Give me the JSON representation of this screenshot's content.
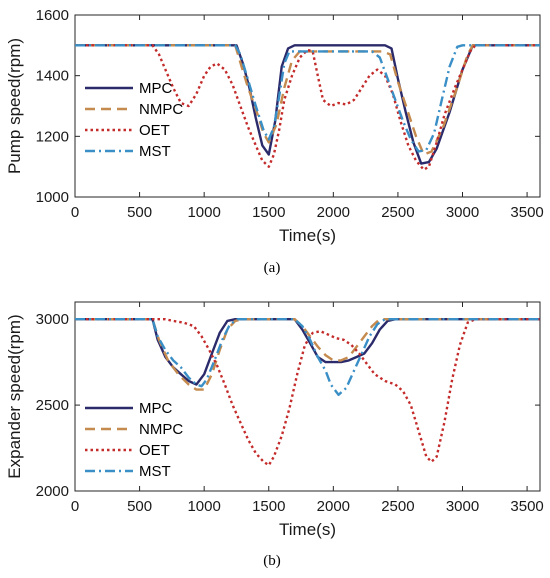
{
  "chart_data": [
    {
      "type": "line",
      "panel_label": "(a)",
      "xlabel": "Time(s)",
      "ylabel": "Pump speed(rpm)",
      "xlim": [
        0,
        3600
      ],
      "ylim": [
        1000,
        1600
      ],
      "xticks": [
        0,
        500,
        1000,
        1500,
        2000,
        2500,
        3000,
        3500
      ],
      "yticks": [
        1000,
        1200,
        1400,
        1600
      ],
      "grid": false,
      "legend_position": "left",
      "series": [
        {
          "name": "MPC",
          "color": "#2b2a6b",
          "dash": "solid",
          "points": [
            [
              0,
              1500
            ],
            [
              1250,
              1500
            ],
            [
              1300,
              1440
            ],
            [
              1350,
              1360
            ],
            [
              1400,
              1260
            ],
            [
              1450,
              1170
            ],
            [
              1500,
              1140
            ],
            [
              1550,
              1250
            ],
            [
              1600,
              1430
            ],
            [
              1650,
              1490
            ],
            [
              1700,
              1500
            ],
            [
              2400,
              1500
            ],
            [
              2450,
              1490
            ],
            [
              2500,
              1390
            ],
            [
              2560,
              1280
            ],
            [
              2620,
              1180
            ],
            [
              2680,
              1110
            ],
            [
              2740,
              1115
            ],
            [
              2800,
              1160
            ],
            [
              2900,
              1280
            ],
            [
              3000,
              1420
            ],
            [
              3080,
              1500
            ],
            [
              3600,
              1500
            ]
          ]
        },
        {
          "name": "NMPC",
          "color": "#c48a4e",
          "dash": "10,6",
          "points": [
            [
              0,
              1500
            ],
            [
              1240,
              1500
            ],
            [
              1290,
              1430
            ],
            [
              1340,
              1360
            ],
            [
              1400,
              1290
            ],
            [
              1460,
              1210
            ],
            [
              1500,
              1180
            ],
            [
              1560,
              1240
            ],
            [
              1620,
              1360
            ],
            [
              1680,
              1450
            ],
            [
              1740,
              1480
            ],
            [
              2380,
              1480
            ],
            [
              2440,
              1470
            ],
            [
              2500,
              1380
            ],
            [
              2570,
              1290
            ],
            [
              2640,
              1200
            ],
            [
              2700,
              1140
            ],
            [
              2760,
              1150
            ],
            [
              2850,
              1230
            ],
            [
              2950,
              1350
            ],
            [
              3040,
              1470
            ],
            [
              3080,
              1500
            ],
            [
              3600,
              1500
            ]
          ]
        },
        {
          "name": "OET",
          "color": "#c42b2b",
          "dash": "2.5,3",
          "points": [
            [
              0,
              1500
            ],
            [
              600,
              1500
            ],
            [
              650,
              1470
            ],
            [
              700,
              1420
            ],
            [
              760,
              1360
            ],
            [
              820,
              1310
            ],
            [
              880,
              1300
            ],
            [
              940,
              1340
            ],
            [
              1000,
              1400
            ],
            [
              1050,
              1430
            ],
            [
              1100,
              1440
            ],
            [
              1160,
              1420
            ],
            [
              1220,
              1370
            ],
            [
              1280,
              1300
            ],
            [
              1340,
              1230
            ],
            [
              1400,
              1170
            ],
            [
              1450,
              1120
            ],
            [
              1500,
              1100
            ],
            [
              1540,
              1140
            ],
            [
              1580,
              1220
            ],
            [
              1620,
              1320
            ],
            [
              1680,
              1400
            ],
            [
              1740,
              1460
            ],
            [
              1800,
              1485
            ],
            [
              1840,
              1480
            ],
            [
              1880,
              1400
            ],
            [
              1920,
              1320
            ],
            [
              1980,
              1300
            ],
            [
              2040,
              1310
            ],
            [
              2100,
              1305
            ],
            [
              2160,
              1320
            ],
            [
              2220,
              1360
            ],
            [
              2280,
              1400
            ],
            [
              2340,
              1420
            ],
            [
              2400,
              1400
            ],
            [
              2460,
              1340
            ],
            [
              2520,
              1250
            ],
            [
              2580,
              1170
            ],
            [
              2640,
              1120
            ],
            [
              2700,
              1090
            ],
            [
              2740,
              1100
            ],
            [
              2800,
              1180
            ],
            [
              2860,
              1270
            ],
            [
              2940,
              1360
            ],
            [
              3000,
              1420
            ],
            [
              3060,
              1480
            ],
            [
              3100,
              1500
            ],
            [
              3600,
              1500
            ]
          ]
        },
        {
          "name": "MST",
          "color": "#3a8fc6",
          "dash": "10,4,2,4",
          "points": [
            [
              0,
              1500
            ],
            [
              1240,
              1500
            ],
            [
              1280,
              1470
            ],
            [
              1330,
              1400
            ],
            [
              1400,
              1300
            ],
            [
              1460,
              1220
            ],
            [
              1500,
              1190
            ],
            [
              1540,
              1230
            ],
            [
              1580,
              1330
            ],
            [
              1620,
              1440
            ],
            [
              1660,
              1480
            ],
            [
              2300,
              1480
            ],
            [
              2360,
              1460
            ],
            [
              2420,
              1390
            ],
            [
              2480,
              1320
            ],
            [
              2540,
              1250
            ],
            [
              2600,
              1190
            ],
            [
              2660,
              1150
            ],
            [
              2720,
              1155
            ],
            [
              2780,
              1210
            ],
            [
              2840,
              1320
            ],
            [
              2900,
              1430
            ],
            [
              2960,
              1495
            ],
            [
              3000,
              1500
            ],
            [
              3600,
              1500
            ]
          ]
        }
      ]
    },
    {
      "type": "line",
      "panel_label": "(b)",
      "xlabel": "Time(s)",
      "ylabel": "Expander speed(rpm)",
      "xlim": [
        0,
        3600
      ],
      "ylim": [
        2000,
        3100
      ],
      "xticks": [
        0,
        500,
        1000,
        1500,
        2000,
        2500,
        3000,
        3500
      ],
      "yticks": [
        2000,
        2500,
        3000
      ],
      "grid": false,
      "legend_position": "bottom-left",
      "series": [
        {
          "name": "MPC",
          "color": "#2b2a6b",
          "dash": "solid",
          "points": [
            [
              0,
              3000
            ],
            [
              600,
              3000
            ],
            [
              640,
              2880
            ],
            [
              700,
              2780
            ],
            [
              760,
              2720
            ],
            [
              820,
              2680
            ],
            [
              880,
              2640
            ],
            [
              940,
              2620
            ],
            [
              1000,
              2680
            ],
            [
              1060,
              2800
            ],
            [
              1120,
              2920
            ],
            [
              1180,
              2990
            ],
            [
              1240,
              3000
            ],
            [
              1700,
              3000
            ],
            [
              1760,
              2940
            ],
            [
              1820,
              2860
            ],
            [
              1880,
              2780
            ],
            [
              1940,
              2750
            ],
            [
              2000,
              2750
            ],
            [
              2060,
              2750
            ],
            [
              2120,
              2760
            ],
            [
              2180,
              2780
            ],
            [
              2240,
              2800
            ],
            [
              2300,
              2860
            ],
            [
              2360,
              2940
            ],
            [
              2420,
              2990
            ],
            [
              2480,
              3000
            ],
            [
              3600,
              3000
            ]
          ]
        },
        {
          "name": "NMPC",
          "color": "#c48a4e",
          "dash": "10,6",
          "points": [
            [
              0,
              3000
            ],
            [
              600,
              3000
            ],
            [
              650,
              2880
            ],
            [
              720,
              2760
            ],
            [
              800,
              2680
            ],
            [
              880,
              2620
            ],
            [
              940,
              2590
            ],
            [
              1000,
              2590
            ],
            [
              1060,
              2680
            ],
            [
              1120,
              2820
            ],
            [
              1180,
              2940
            ],
            [
              1240,
              2990
            ],
            [
              1300,
              3000
            ],
            [
              1700,
              3000
            ],
            [
              1760,
              2960
            ],
            [
              1820,
              2900
            ],
            [
              1880,
              2840
            ],
            [
              1940,
              2790
            ],
            [
              2000,
              2760
            ],
            [
              2060,
              2760
            ],
            [
              2120,
              2780
            ],
            [
              2180,
              2840
            ],
            [
              2240,
              2900
            ],
            [
              2300,
              2960
            ],
            [
              2360,
              3000
            ],
            [
              3600,
              3000
            ]
          ]
        },
        {
          "name": "OET",
          "color": "#c42b2b",
          "dash": "2.5,3",
          "points": [
            [
              0,
              3000
            ],
            [
              700,
              3000
            ],
            [
              760,
              2990
            ],
            [
              840,
              2980
            ],
            [
              920,
              2960
            ],
            [
              980,
              2900
            ],
            [
              1040,
              2820
            ],
            [
              1100,
              2730
            ],
            [
              1160,
              2620
            ],
            [
              1220,
              2500
            ],
            [
              1280,
              2400
            ],
            [
              1340,
              2300
            ],
            [
              1400,
              2220
            ],
            [
              1460,
              2170
            ],
            [
              1500,
              2150
            ],
            [
              1540,
              2200
            ],
            [
              1600,
              2320
            ],
            [
              1660,
              2480
            ],
            [
              1720,
              2680
            ],
            [
              1780,
              2850
            ],
            [
              1840,
              2920
            ],
            [
              1900,
              2930
            ],
            [
              1960,
              2910
            ],
            [
              2020,
              2890
            ],
            [
              2080,
              2880
            ],
            [
              2140,
              2850
            ],
            [
              2200,
              2800
            ],
            [
              2260,
              2740
            ],
            [
              2320,
              2680
            ],
            [
              2400,
              2640
            ],
            [
              2480,
              2620
            ],
            [
              2540,
              2580
            ],
            [
              2600,
              2500
            ],
            [
              2660,
              2350
            ],
            [
              2720,
              2200
            ],
            [
              2760,
              2170
            ],
            [
              2800,
              2200
            ],
            [
              2860,
              2400
            ],
            [
              2920,
              2650
            ],
            [
              2980,
              2850
            ],
            [
              3040,
              2980
            ],
            [
              3100,
              3000
            ],
            [
              3600,
              3000
            ]
          ]
        },
        {
          "name": "MST",
          "color": "#3a8fc6",
          "dash": "10,4,2,4",
          "points": [
            [
              0,
              3000
            ],
            [
              600,
              3000
            ],
            [
              640,
              2900
            ],
            [
              700,
              2820
            ],
            [
              760,
              2760
            ],
            [
              820,
              2720
            ],
            [
              880,
              2660
            ],
            [
              940,
              2620
            ],
            [
              980,
              2610
            ],
            [
              1020,
              2650
            ],
            [
              1080,
              2760
            ],
            [
              1140,
              2880
            ],
            [
              1200,
              2970
            ],
            [
              1260,
              3000
            ],
            [
              1700,
              3000
            ],
            [
              1760,
              2960
            ],
            [
              1820,
              2880
            ],
            [
              1880,
              2780
            ],
            [
              1940,
              2700
            ],
            [
              1980,
              2620
            ],
            [
              2040,
              2560
            ],
            [
              2100,
              2600
            ],
            [
              2160,
              2700
            ],
            [
              2220,
              2800
            ],
            [
              2280,
              2900
            ],
            [
              2340,
              2970
            ],
            [
              2400,
              3000
            ],
            [
              3600,
              3000
            ]
          ]
        }
      ]
    }
  ]
}
